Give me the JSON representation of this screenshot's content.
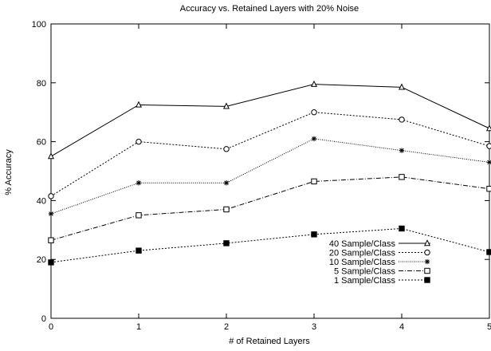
{
  "chart_data": {
    "type": "line",
    "title": "Accuracy vs. Retained Layers with 20% Noise",
    "xlabel": "# of Retained Layers",
    "ylabel": "% Accuracy",
    "x": [
      0,
      1,
      2,
      3,
      4,
      5
    ],
    "xlim": [
      0,
      5
    ],
    "ylim": [
      0,
      100
    ],
    "xticks": [
      "0",
      "1",
      "2",
      "3",
      "4",
      "5"
    ],
    "yticks": [
      "0",
      "20",
      "40",
      "60",
      "80",
      "100"
    ],
    "grid": false,
    "legend_position": "bottom-right",
    "series": [
      {
        "name": "40 Sample/Class",
        "marker": "triangle",
        "dash": "solid",
        "values": [
          55,
          72.5,
          72,
          79.5,
          78.5,
          64.5
        ]
      },
      {
        "name": "20 Sample/Class",
        "marker": "circle",
        "dash": "dotted",
        "values": [
          41.5,
          60,
          57.5,
          70,
          67.5,
          58.5
        ]
      },
      {
        "name": "10 Sample/Class",
        "marker": "star",
        "dash": "fine-dotted",
        "values": [
          35.5,
          46,
          46,
          61,
          57,
          53
        ]
      },
      {
        "name": "5 Sample/Class",
        "marker": "square",
        "dash": "dash-dot",
        "values": [
          26.5,
          35,
          37,
          46.5,
          48,
          44
        ]
      },
      {
        "name": "1 Sample/Class",
        "marker": "filled-square",
        "dash": "dotted",
        "values": [
          19,
          23,
          25.5,
          28.5,
          30.5,
          22.5
        ]
      }
    ]
  }
}
